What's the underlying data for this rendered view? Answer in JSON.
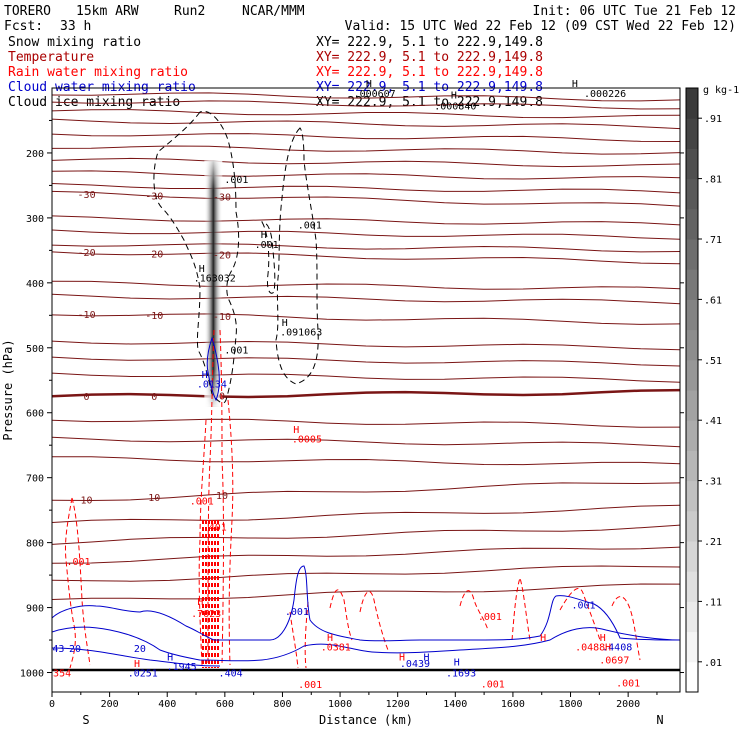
{
  "header": {
    "model": "TORERO",
    "resolution": "15km ARW",
    "run": "Run2",
    "org": "NCAR/MMM",
    "init": "Init: 06 UTC Tue 21 Feb 12",
    "fcst_label": "Fcst:",
    "fcst_value": "33 h",
    "valid": "Valid: 15 UTC Wed 22 Feb 12 (09 CST Wed 22 Feb 12)"
  },
  "legend": [
    {
      "name": "Snow mixing ratio",
      "xy": "XY= 222.9,  5.1 to 222.9,149.8",
      "color": "#000000"
    },
    {
      "name": "Temperature",
      "xy": "XY= 222.9,  5.1 to 222.9,149.8",
      "color": "#aa0000"
    },
    {
      "name": "Rain water mixing ratio",
      "xy": "XY= 222.9,  5.1 to 222.9,149.8",
      "color": "#ff0000"
    },
    {
      "name": "Cloud water mixing ratio",
      "xy": "XY= 222.9,  5.1 to 222.9,149.8",
      "color": "#0000cc"
    },
    {
      "name": "Cloud ice mixing ratio",
      "xy": "XY= 222.9,  5.1 to 222.9,149.8",
      "color": "#000000"
    }
  ],
  "chart_data": {
    "type": "cross-section",
    "xlabel": "Distance (km)",
    "ylabel": "Pressure (hPa)",
    "xlim": [
      0,
      2180
    ],
    "ylim": [
      1030,
      100
    ],
    "x_ticks": [
      0,
      200,
      400,
      600,
      800,
      1000,
      1200,
      1400,
      1600,
      1800,
      2000
    ],
    "y_ticks": [
      200,
      300,
      400,
      500,
      600,
      700,
      800,
      900,
      1000
    ],
    "left_end_label": "S",
    "right_end_label": "N",
    "colorbar": {
      "units": "g kg-1",
      "ticks": [
        ".01",
        ".11",
        ".21",
        ".31",
        ".41",
        ".51",
        ".61",
        ".71",
        ".81",
        ".91"
      ],
      "low_color": "#ffffff",
      "high_color": "#3a3a3a"
    },
    "temperature_isotherms": [
      {
        "label": "-30",
        "pressure_left": 262,
        "pressure_right": 282
      },
      {
        "label": "-20",
        "pressure_left": 352,
        "pressure_right": 368
      },
      {
        "label": "-10",
        "pressure_left": 447,
        "pressure_right": 462
      },
      {
        "label": "0",
        "pressure_left": 575,
        "pressure_right": 568
      },
      {
        "label": "10",
        "pressure_left": 735,
        "pressure_right": 705
      }
    ],
    "snow_plume": {
      "x_km": 560,
      "p_top": 212,
      "p_bottom": 590,
      "max_value": ".91"
    },
    "contour_labels": [
      {
        "text": ".001",
        "x_km": 640,
        "p": 240,
        "color": "#000000"
      },
      {
        "text": ".001",
        "x_km": 745,
        "p": 340,
        "color": "#000000"
      },
      {
        "text": ".001",
        "x_km": 895,
        "p": 310,
        "color": "#000000"
      },
      {
        "text": ".001",
        "x_km": 640,
        "p": 503,
        "color": "#000000"
      },
      {
        "text": ".163032",
        "x_km": 565,
        "p": 392,
        "color": "#000000"
      },
      {
        "text": ".091063",
        "x_km": 865,
        "p": 475,
        "color": "#000000"
      },
      {
        "text": ".000607",
        "x_km": 1120,
        "p": 108,
        "color": "#000000"
      },
      {
        "text": ".000840",
        "x_km": 1400,
        "p": 127,
        "color": "#000000"
      },
      {
        "text": ".000226",
        "x_km": 1920,
        "p": 108,
        "color": "#000000"
      },
      {
        "text": ".0134",
        "x_km": 555,
        "p": 555,
        "color": "#0000cc"
      },
      {
        "text": ".001",
        "x_km": 850,
        "p": 905,
        "color": "#0000cc"
      },
      {
        "text": ".1945",
        "x_km": 450,
        "p": 990,
        "color": "#0000cc"
      },
      {
        "text": ".0251",
        "x_km": 315,
        "p": 1000,
        "color": "#0000cc"
      },
      {
        "text": ".1693",
        "x_km": 1420,
        "p": 1000,
        "color": "#0000cc"
      },
      {
        "text": ".001",
        "x_km": 1845,
        "p": 895,
        "color": "#0000cc"
      },
      {
        "text": ".404",
        "x_km": 620,
        "p": 1000,
        "color": "#0000cc"
      },
      {
        "text": ".0005",
        "x_km": 885,
        "p": 640,
        "color": "#ff0000"
      },
      {
        "text": ".001",
        "x_km": 520,
        "p": 735,
        "color": "#ff0000"
      },
      {
        "text": ".401",
        "x_km": 565,
        "p": 775,
        "color": "#ff0000"
      },
      {
        "text": ".001",
        "x_km": 92,
        "p": 828,
        "color": "#ff0000"
      },
      {
        "text": ".7623",
        "x_km": 535,
        "p": 908,
        "color": "#ff0000"
      },
      {
        "text": ".001",
        "x_km": 1520,
        "p": 913,
        "color": "#ff0000"
      },
      {
        "text": ".001",
        "x_km": 896,
        "p": 1018,
        "color": "#ff0000"
      },
      {
        "text": ".001",
        "x_km": 1530,
        "p": 1017,
        "color": "#ff0000"
      },
      {
        "text": ".001",
        "x_km": 2000,
        "p": 1015,
        "color": "#ff0000"
      },
      {
        "text": ".0697",
        "x_km": 1952,
        "p": 980,
        "color": "#ff0000"
      },
      {
        "text": "354",
        "x_km": 35,
        "p": 1000,
        "color": "#ff0000"
      },
      {
        "text": ".0488",
        "x_km": 1868,
        "p": 960,
        "color": "#ff0000"
      },
      {
        "text": ".4408",
        "x_km": 1962,
        "p": 960,
        "color": "#0000cc"
      },
      {
        "text": ".0381",
        "x_km": 985,
        "p": 960,
        "color": "#ff0000"
      },
      {
        "text": ".0439",
        "x_km": 1260,
        "p": 985,
        "color": "#0000cc"
      },
      {
        "text": "43",
        "x_km": 22,
        "p": 962,
        "color": "#0000cc"
      },
      {
        "text": "20",
        "x_km": 80,
        "p": 962,
        "color": "#0000cc"
      },
      {
        "text": "20",
        "x_km": 305,
        "p": 962,
        "color": "#0000cc"
      }
    ],
    "high_markers": [
      {
        "x_km": 520,
        "p": 377,
        "color": "#000000"
      },
      {
        "x_km": 735,
        "p": 325,
        "color": "#000000"
      },
      {
        "x_km": 808,
        "p": 460,
        "color": "#000000"
      },
      {
        "x_km": 1100,
        "p": 92,
        "color": "#000000"
      },
      {
        "x_km": 1395,
        "p": 110,
        "color": "#000000"
      },
      {
        "x_km": 1815,
        "p": 92,
        "color": "#000000"
      },
      {
        "x_km": 530,
        "p": 540,
        "color": "#0000cc"
      },
      {
        "x_km": 410,
        "p": 975,
        "color": "#0000cc"
      },
      {
        "x_km": 1405,
        "p": 983,
        "color": "#0000cc"
      },
      {
        "x_km": 1300,
        "p": 975,
        "color": "#0000cc"
      },
      {
        "x_km": 848,
        "p": 625,
        "color": "#ff0000"
      },
      {
        "x_km": 515,
        "p": 890,
        "color": "#ff0000"
      },
      {
        "x_km": 295,
        "p": 985,
        "color": "#ff0000"
      },
      {
        "x_km": 965,
        "p": 945,
        "color": "#ff0000"
      },
      {
        "x_km": 1215,
        "p": 975,
        "color": "#ff0000"
      },
      {
        "x_km": 1705,
        "p": 945,
        "color": "#ff0000"
      },
      {
        "x_km": 1912,
        "p": 945,
        "color": "#ff0000"
      },
      {
        "x_km": 1930,
        "p": 960,
        "color": "#ff0000"
      }
    ]
  }
}
